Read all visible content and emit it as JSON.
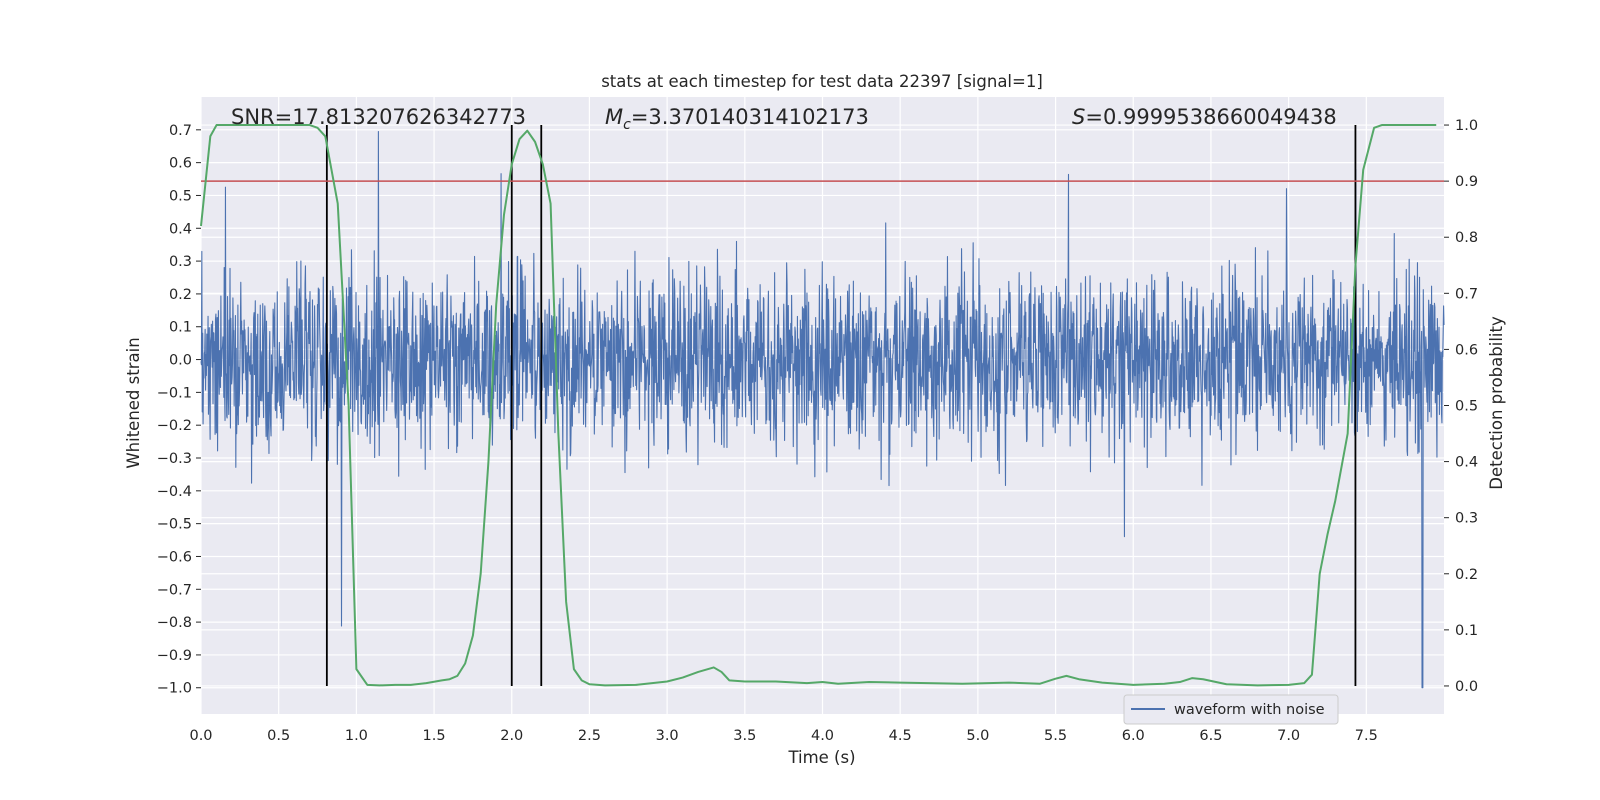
{
  "chart_data": {
    "type": "line",
    "title": "stats at each timestep for test data 22397 [signal=1]",
    "xlabel": "Time (s)",
    "ylabel": "Whitened strain",
    "y2label": "Detection probability",
    "xlim": [
      0,
      8
    ],
    "ylim": [
      -1.08,
      0.8
    ],
    "y2lim": [
      -0.05,
      1.05
    ],
    "xticks": [
      0.0,
      0.5,
      1.0,
      1.5,
      2.0,
      2.5,
      3.0,
      3.5,
      4.0,
      4.5,
      5.0,
      5.5,
      6.0,
      6.5,
      7.0,
      7.5
    ],
    "xtick_labels": [
      "0.0",
      "0.5",
      "1.0",
      "1.5",
      "2.0",
      "2.5",
      "3.0",
      "3.5",
      "4.0",
      "4.5",
      "5.0",
      "5.5",
      "6.0",
      "6.5",
      "7.0",
      "7.5"
    ],
    "yticks": [
      0.7,
      0.6,
      0.5,
      0.4,
      0.3,
      0.2,
      0.1,
      0.0,
      -0.1,
      -0.2,
      -0.3,
      -0.4,
      -0.5,
      -0.6,
      -0.7,
      -0.8,
      -0.9,
      -1.0
    ],
    "ytick_labels": [
      "0.7",
      "0.6",
      "0.5",
      "0.4",
      "0.3",
      "0.2",
      "0.1",
      "0.0",
      "−0.1",
      "−0.2",
      "−0.3",
      "−0.4",
      "−0.5",
      "−0.6",
      "−0.7",
      "−0.8",
      "−0.9",
      "−1.0"
    ],
    "y2ticks": [
      1.0,
      0.9,
      0.8,
      0.7,
      0.6,
      0.5,
      0.4,
      0.3,
      0.2,
      0.1,
      0.0
    ],
    "y2tick_labels": [
      "1.0",
      "0.9",
      "0.8",
      "0.7",
      "0.6",
      "0.5",
      "0.4",
      "0.3",
      "0.2",
      "0.1",
      "0.0"
    ],
    "annotations": {
      "snr": "SNR=17.813207626342773",
      "mc_symbol": "M",
      "mc_sub": "c",
      "mc_value": "=3.370140314102173",
      "s_symbol": "S",
      "s_value": "=0.9999538660049438"
    },
    "legend": {
      "label": "waveform with noise",
      "location": "lower-right"
    },
    "threshold": {
      "y2": 0.9,
      "color": "#c44e52"
    },
    "vertical_lines_x": [
      0.81,
      2.0,
      2.19,
      7.43
    ],
    "noise": {
      "seed": 22397,
      "samples": 3000,
      "rms": 0.13,
      "glitch_x": 7.86,
      "glitch_y": -1.0
    },
    "series": [
      {
        "name": "waveform with noise",
        "color": "#4c72b0",
        "axis": "left",
        "description": "whitened strain, synthetic noise trace"
      },
      {
        "name": "detection probability",
        "color": "#55a868",
        "axis": "right",
        "x": [
          0.0,
          0.06,
          0.1,
          0.2,
          0.3,
          0.4,
          0.5,
          0.6,
          0.7,
          0.75,
          0.8,
          0.88,
          0.95,
          1.0,
          1.07,
          1.15,
          1.25,
          1.35,
          1.45,
          1.55,
          1.6,
          1.65,
          1.7,
          1.75,
          1.8,
          1.85,
          1.9,
          1.95,
          2.0,
          2.05,
          2.1,
          2.15,
          2.2,
          2.25,
          2.3,
          2.35,
          2.4,
          2.45,
          2.5,
          2.6,
          2.8,
          3.0,
          3.1,
          3.2,
          3.3,
          3.35,
          3.4,
          3.5,
          3.7,
          3.9,
          4.0,
          4.1,
          4.3,
          4.5,
          4.9,
          5.2,
          5.4,
          5.5,
          5.57,
          5.65,
          5.8,
          6.0,
          6.2,
          6.3,
          6.38,
          6.45,
          6.6,
          6.8,
          7.0,
          7.1,
          7.15,
          7.2,
          7.25,
          7.3,
          7.38,
          7.43,
          7.48,
          7.55,
          7.6,
          7.7,
          7.8,
          7.95
        ],
        "y": [
          0.82,
          0.98,
          1.0,
          1.0,
          1.0,
          1.0,
          1.0,
          1.0,
          1.0,
          0.995,
          0.98,
          0.86,
          0.5,
          0.03,
          0.002,
          0.001,
          0.002,
          0.002,
          0.005,
          0.01,
          0.012,
          0.018,
          0.04,
          0.09,
          0.2,
          0.4,
          0.68,
          0.84,
          0.93,
          0.975,
          0.99,
          0.97,
          0.93,
          0.86,
          0.45,
          0.15,
          0.03,
          0.01,
          0.003,
          0.001,
          0.002,
          0.008,
          0.015,
          0.025,
          0.033,
          0.025,
          0.01,
          0.008,
          0.008,
          0.005,
          0.007,
          0.004,
          0.007,
          0.006,
          0.004,
          0.006,
          0.004,
          0.013,
          0.018,
          0.012,
          0.006,
          0.002,
          0.004,
          0.007,
          0.014,
          0.012,
          0.003,
          0.001,
          0.002,
          0.005,
          0.02,
          0.2,
          0.27,
          0.33,
          0.45,
          0.75,
          0.92,
          0.995,
          1.0,
          1.0,
          1.0,
          1.0
        ]
      }
    ]
  }
}
